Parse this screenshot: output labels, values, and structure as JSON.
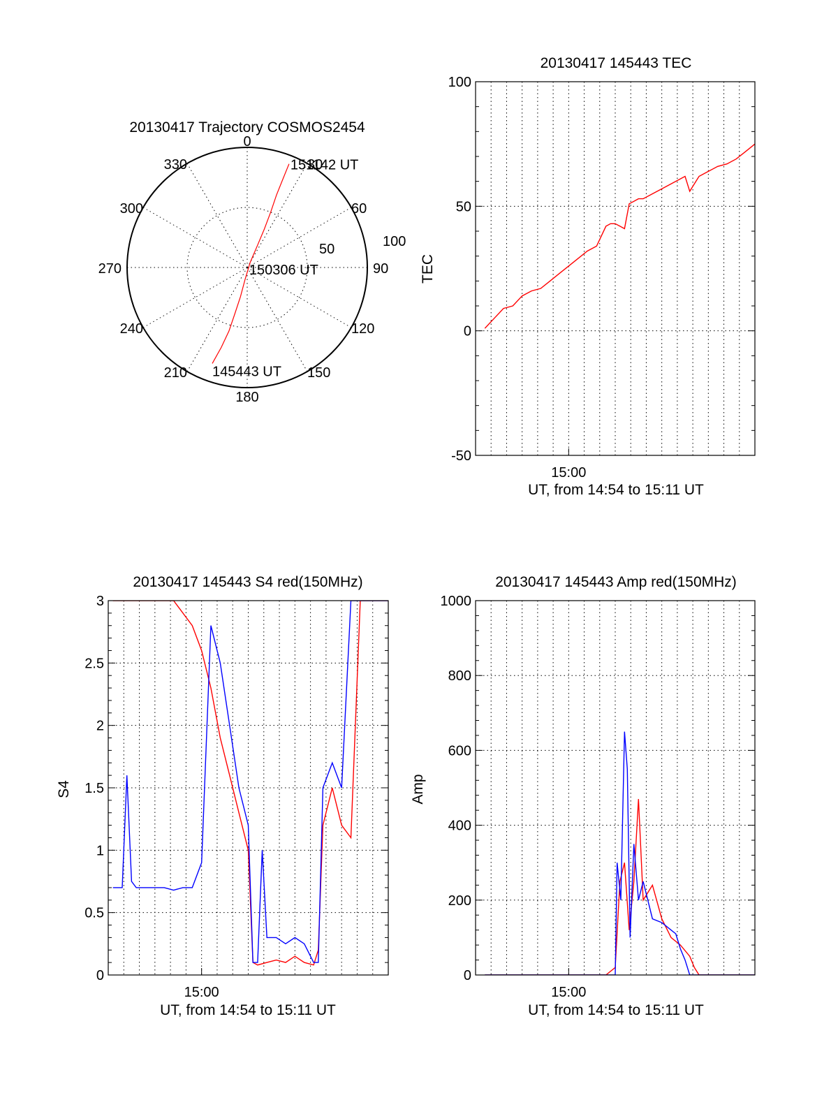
{
  "colors": {
    "red": "#ff0000",
    "blue": "#0000ff",
    "axis": "#000000",
    "background": "#ffffff"
  },
  "chart_data": [
    {
      "id": "trajectory",
      "type": "polar",
      "title": "20130417 Trajectory COSMOS2454",
      "grid": true,
      "azimuth_labels": [
        "0",
        "30",
        "60",
        "90",
        "120",
        "150",
        "180",
        "210",
        "240",
        "270",
        "300",
        "330"
      ],
      "radial_labels": [
        "50",
        "100"
      ],
      "radial_range": [
        0,
        100
      ],
      "series": [
        {
          "color": "red",
          "points": [
            {
              "az": 200,
              "r": 85
            },
            {
              "az": 198,
              "r": 70
            },
            {
              "az": 196,
              "r": 55
            },
            {
              "az": 195,
              "r": 40
            },
            {
              "az": 193,
              "r": 25
            },
            {
              "az": 190,
              "r": 10
            },
            {
              "az": 30,
              "r": 5
            },
            {
              "az": 25,
              "r": 20
            },
            {
              "az": 24,
              "r": 35
            },
            {
              "az": 23,
              "r": 50
            },
            {
              "az": 22,
              "r": 65
            },
            {
              "az": 22,
              "r": 80
            },
            {
              "az": 22,
              "r": 93
            }
          ]
        }
      ],
      "annotations": [
        {
          "text": "151142 UT",
          "az": 22,
          "r": 93
        },
        {
          "text": "150306 UT",
          "az": 90,
          "r": 4
        },
        {
          "text": "145443 UT",
          "az": 200,
          "r": 85
        }
      ]
    },
    {
      "id": "tec",
      "type": "line",
      "title": "20130417 145443 TEC",
      "xlabel": "UT, from 14:54 to 15:11 UT",
      "ylabel": "TEC",
      "xlim": [
        14.9,
        15.2
      ],
      "ylim": [
        -50,
        100
      ],
      "yticks": [
        -50,
        0,
        50,
        100
      ],
      "xtick_labels": [
        {
          "x": 15.0,
          "label": "15:00"
        }
      ],
      "grid": true,
      "series": [
        {
          "color": "red",
          "x": [
            14.91,
            14.92,
            14.93,
            14.94,
            14.95,
            14.96,
            14.97,
            14.98,
            14.99,
            15.0,
            15.01,
            15.02,
            15.03,
            15.04,
            15.045,
            15.05,
            15.06,
            15.065,
            15.07,
            15.075,
            15.08,
            15.09,
            15.1,
            15.11,
            15.125,
            15.13,
            15.14,
            15.15,
            15.16,
            15.17,
            15.18,
            15.19,
            15.2
          ],
          "y": [
            1,
            5,
            9,
            10,
            14,
            16,
            17,
            20,
            23,
            26,
            29,
            32,
            34,
            42,
            43,
            43,
            41,
            51,
            52,
            53,
            53,
            55,
            57,
            59,
            62,
            56,
            62,
            64,
            66,
            67,
            69,
            72,
            75
          ]
        }
      ]
    },
    {
      "id": "s4",
      "type": "line",
      "title": "20130417 145443 S4 red(150MHz)",
      "xlabel": "UT, from 14:54 to 15:11 UT",
      "ylabel": "S4",
      "xlim": [
        14.9,
        15.2
      ],
      "ylim": [
        0,
        3
      ],
      "yticks": [
        0,
        0.5,
        1,
        1.5,
        2,
        2.5,
        3
      ],
      "ytick_labels": [
        "0",
        "0.5",
        "1",
        "1.5",
        "2",
        "2.5",
        "3"
      ],
      "xtick_labels": [
        {
          "x": 15.0,
          "label": "15:00"
        }
      ],
      "grid": true,
      "series": [
        {
          "color": "red",
          "x": [
            14.905,
            14.93,
            14.95,
            14.97,
            14.99,
            15.0,
            15.01,
            15.02,
            15.03,
            15.04,
            15.05,
            15.055,
            15.06,
            15.07,
            15.08,
            15.09,
            15.1,
            15.11,
            15.12,
            15.125,
            15.13,
            15.14,
            15.15,
            15.16,
            15.17,
            15.18,
            15.19,
            15.2
          ],
          "y": [
            3,
            3,
            3,
            3,
            2.8,
            2.6,
            2.3,
            1.9,
            1.6,
            1.3,
            1.0,
            0.1,
            0.08,
            0.1,
            0.12,
            0.1,
            0.15,
            0.1,
            0.08,
            0.2,
            1.2,
            1.5,
            1.2,
            1.1,
            3,
            3,
            3,
            3
          ]
        },
        {
          "color": "blue",
          "x": [
            14.905,
            14.915,
            14.92,
            14.925,
            14.93,
            14.94,
            14.95,
            14.96,
            14.97,
            14.98,
            14.99,
            15.0,
            15.01,
            15.02,
            15.03,
            15.04,
            15.05,
            15.055,
            15.06,
            15.065,
            15.07,
            15.08,
            15.09,
            15.1,
            15.11,
            15.12,
            15.125,
            15.13,
            15.14,
            15.15,
            15.16,
            15.17,
            15.18,
            15.19,
            15.2
          ],
          "y": [
            0.7,
            0.7,
            1.6,
            0.75,
            0.7,
            0.7,
            0.7,
            0.7,
            0.68,
            0.7,
            0.7,
            0.9,
            2.8,
            2.5,
            2.0,
            1.5,
            1.2,
            0.1,
            0.1,
            1.0,
            0.3,
            0.3,
            0.25,
            0.3,
            0.25,
            0.1,
            0.1,
            1.5,
            1.7,
            1.5,
            3,
            3,
            3,
            3,
            3
          ]
        }
      ]
    },
    {
      "id": "amp",
      "type": "line",
      "title": "20130417 145443 Amp red(150MHz)",
      "xlabel": "UT, from 14:54 to 15:11 UT",
      "ylabel": "Amp",
      "xlim": [
        14.9,
        15.2
      ],
      "ylim": [
        0,
        1000
      ],
      "yticks": [
        0,
        200,
        400,
        600,
        800,
        1000
      ],
      "xtick_labels": [
        {
          "x": 15.0,
          "label": "15:00"
        }
      ],
      "grid": true,
      "series": [
        {
          "color": "red",
          "x": [
            14.91,
            15.04,
            15.05,
            15.055,
            15.06,
            15.065,
            15.07,
            15.075,
            15.08,
            15.09,
            15.1,
            15.11,
            15.12,
            15.13,
            15.135,
            15.14,
            15.2
          ],
          "y": [
            0,
            0,
            20,
            250,
            300,
            120,
            250,
            470,
            200,
            240,
            150,
            100,
            80,
            50,
            20,
            0,
            0
          ]
        },
        {
          "color": "blue",
          "x": [
            14.91,
            15.05,
            15.052,
            15.056,
            15.06,
            15.063,
            15.066,
            15.07,
            15.075,
            15.08,
            15.09,
            15.1,
            15.11,
            15.115,
            15.12,
            15.125,
            15.13,
            15.2
          ],
          "y": [
            0,
            0,
            300,
            200,
            650,
            550,
            100,
            350,
            200,
            250,
            150,
            140,
            120,
            110,
            70,
            40,
            0,
            0
          ]
        }
      ]
    }
  ]
}
